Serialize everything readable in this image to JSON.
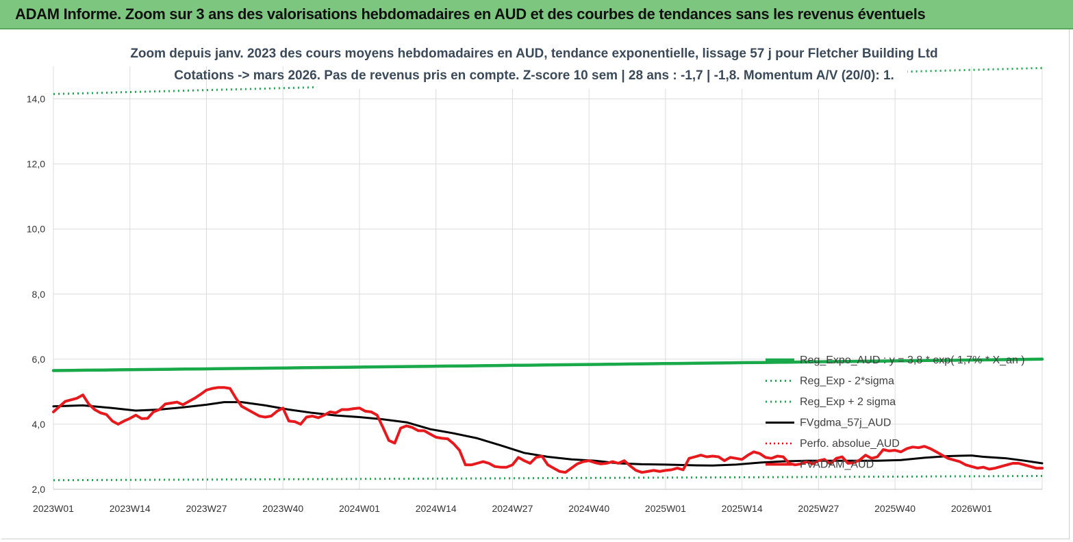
{
  "header": {
    "title": "ADAM Informe. Zoom sur 3 ans des valorisations hebdomadaires en AUD et des courbes de tendances sans les revenus éventuels"
  },
  "chart_data": {
    "type": "line",
    "title": "Zoom depuis janv. 2023 des cours moyens hebdomadaires en AUD, tendance exponentielle, lissage 57 j pour Fletcher Building Ltd",
    "subtitle": "Cotations -> mars 2026. Pas de revenus pris en compte. Z-score 10 sem | 28 ans : -1,7 | -1,8. Momentum A/V (20/0): 1.",
    "xlabel": "",
    "ylabel": "",
    "ylim": [
      2.0,
      15.0
    ],
    "yticks": [
      "2,0",
      "4,0",
      "6,0",
      "8,0",
      "10,0",
      "12,0",
      "14,0"
    ],
    "x_tick_labels": [
      "2023W01",
      "2023W14",
      "2023W27",
      "2023W40",
      "2024W01",
      "2024W14",
      "2024W27",
      "2024W40",
      "2025W01",
      "2025W14",
      "2025W27",
      "2025W40",
      "2026W01"
    ],
    "x_range_weeks": [
      0,
      168
    ],
    "grid": "vertical and horizontal",
    "legend_position": "right, lower half",
    "colors": {
      "regexpo": "#19a84a",
      "sigma": "#19a84a",
      "fvgdma": "#000000",
      "perfo": "#e60000",
      "fvadam": "#e8191c"
    },
    "series": [
      {
        "name": "Reg_Expo_AUD : y = 3,8 * exp( 1,7% * X_an )",
        "key": "regexpo",
        "style": "thick",
        "points": [
          [
            0,
            5.65
          ],
          [
            168,
            6.0
          ]
        ]
      },
      {
        "name": "Reg_Exp - 2*sigma",
        "key": "sigma_low",
        "style": "dotted",
        "points": [
          [
            0,
            2.28
          ],
          [
            168,
            2.41
          ]
        ]
      },
      {
        "name": "Reg_Exp + 2 sigma",
        "key": "sigma_high",
        "style": "dotted",
        "points": [
          [
            0,
            14.15
          ],
          [
            168,
            14.95
          ]
        ]
      },
      {
        "name": "FVgdma_57j_AUD",
        "key": "fvgdma",
        "style": "solid",
        "points": [
          [
            0,
            4.55
          ],
          [
            5,
            4.58
          ],
          [
            10,
            4.5
          ],
          [
            14,
            4.42
          ],
          [
            18,
            4.45
          ],
          [
            22,
            4.52
          ],
          [
            26,
            4.6
          ],
          [
            29,
            4.68
          ],
          [
            32,
            4.68
          ],
          [
            36,
            4.58
          ],
          [
            40,
            4.45
          ],
          [
            44,
            4.35
          ],
          [
            48,
            4.27
          ],
          [
            52,
            4.22
          ],
          [
            56,
            4.15
          ],
          [
            60,
            4.06
          ],
          [
            64,
            3.85
          ],
          [
            68,
            3.72
          ],
          [
            72,
            3.57
          ],
          [
            76,
            3.35
          ],
          [
            80,
            3.12
          ],
          [
            84,
            3.0
          ],
          [
            88,
            2.92
          ],
          [
            92,
            2.88
          ],
          [
            96,
            2.8
          ],
          [
            100,
            2.77
          ],
          [
            104,
            2.76
          ],
          [
            108,
            2.74
          ],
          [
            112,
            2.73
          ],
          [
            116,
            2.76
          ],
          [
            120,
            2.82
          ],
          [
            124,
            2.86
          ],
          [
            128,
            2.88
          ],
          [
            132,
            2.88
          ],
          [
            136,
            2.88
          ],
          [
            140,
            2.88
          ],
          [
            144,
            2.9
          ],
          [
            148,
            2.97
          ],
          [
            152,
            3.02
          ],
          [
            156,
            3.04
          ],
          [
            158,
            3.0
          ],
          [
            162,
            2.95
          ],
          [
            165,
            2.88
          ],
          [
            168,
            2.8
          ]
        ]
      },
      {
        "name": "Perfo. absolue_AUD",
        "key": "perfo",
        "style": "dotted-red",
        "points": []
      },
      {
        "name": "FVADAM_AUD",
        "key": "fvadam",
        "style": "thick",
        "points": [
          [
            0,
            4.38
          ],
          [
            2,
            4.7
          ],
          [
            4,
            4.8
          ],
          [
            5,
            4.9
          ],
          [
            6,
            4.62
          ],
          [
            7,
            4.45
          ],
          [
            8,
            4.35
          ],
          [
            9,
            4.3
          ],
          [
            10,
            4.1
          ],
          [
            11,
            4.0
          ],
          [
            12,
            4.1
          ],
          [
            13,
            4.18
          ],
          [
            14,
            4.28
          ],
          [
            15,
            4.17
          ],
          [
            16,
            4.18
          ],
          [
            17,
            4.38
          ],
          [
            18,
            4.45
          ],
          [
            19,
            4.62
          ],
          [
            20,
            4.65
          ],
          [
            21,
            4.68
          ],
          [
            22,
            4.6
          ],
          [
            23,
            4.7
          ],
          [
            24,
            4.8
          ],
          [
            25,
            4.92
          ],
          [
            26,
            5.05
          ],
          [
            27,
            5.1
          ],
          [
            28,
            5.13
          ],
          [
            29,
            5.13
          ],
          [
            30,
            5.1
          ],
          [
            31,
            4.8
          ],
          [
            32,
            4.55
          ],
          [
            33,
            4.45
          ],
          [
            34,
            4.35
          ],
          [
            35,
            4.25
          ],
          [
            36,
            4.22
          ],
          [
            37,
            4.25
          ],
          [
            38,
            4.4
          ],
          [
            39,
            4.5
          ],
          [
            40,
            4.1
          ],
          [
            41,
            4.08
          ],
          [
            42,
            4.0
          ],
          [
            43,
            4.22
          ],
          [
            44,
            4.25
          ],
          [
            45,
            4.2
          ],
          [
            46,
            4.28
          ],
          [
            47,
            4.38
          ],
          [
            48,
            4.35
          ],
          [
            49,
            4.45
          ],
          [
            50,
            4.45
          ],
          [
            51,
            4.48
          ],
          [
            52,
            4.5
          ],
          [
            53,
            4.4
          ],
          [
            54,
            4.38
          ],
          [
            55,
            4.28
          ],
          [
            56,
            3.9
          ],
          [
            57,
            3.5
          ],
          [
            58,
            3.42
          ],
          [
            59,
            3.88
          ],
          [
            60,
            3.95
          ],
          [
            61,
            3.9
          ],
          [
            62,
            3.8
          ],
          [
            63,
            3.8
          ],
          [
            64,
            3.7
          ],
          [
            65,
            3.6
          ],
          [
            66,
            3.57
          ],
          [
            67,
            3.55
          ],
          [
            68,
            3.4
          ],
          [
            69,
            3.2
          ],
          [
            70,
            2.75
          ],
          [
            71,
            2.75
          ],
          [
            72,
            2.8
          ],
          [
            73,
            2.85
          ],
          [
            74,
            2.8
          ],
          [
            75,
            2.7
          ],
          [
            76,
            2.68
          ],
          [
            77,
            2.68
          ],
          [
            78,
            2.75
          ],
          [
            79,
            2.98
          ],
          [
            80,
            2.88
          ],
          [
            81,
            2.8
          ],
          [
            82,
            2.98
          ],
          [
            83,
            3.02
          ],
          [
            84,
            2.75
          ],
          [
            85,
            2.65
          ],
          [
            86,
            2.55
          ],
          [
            87,
            2.52
          ],
          [
            88,
            2.65
          ],
          [
            89,
            2.78
          ],
          [
            90,
            2.85
          ],
          [
            91,
            2.88
          ],
          [
            92,
            2.82
          ],
          [
            93,
            2.78
          ],
          [
            94,
            2.8
          ],
          [
            95,
            2.85
          ],
          [
            96,
            2.8
          ],
          [
            97,
            2.88
          ],
          [
            98,
            2.72
          ],
          [
            99,
            2.58
          ],
          [
            100,
            2.52
          ],
          [
            101,
            2.55
          ],
          [
            102,
            2.58
          ],
          [
            103,
            2.55
          ],
          [
            104,
            2.58
          ],
          [
            105,
            2.6
          ],
          [
            106,
            2.65
          ],
          [
            107,
            2.6
          ],
          [
            108,
            2.95
          ],
          [
            109,
            3.0
          ],
          [
            110,
            3.05
          ],
          [
            111,
            3.0
          ],
          [
            112,
            3.02
          ],
          [
            113,
            3.0
          ],
          [
            114,
            2.88
          ],
          [
            115,
            2.98
          ],
          [
            116,
            2.95
          ],
          [
            117,
            2.92
          ],
          [
            118,
            3.05
          ],
          [
            119,
            3.15
          ],
          [
            120,
            3.1
          ],
          [
            121,
            2.98
          ],
          [
            122,
            2.95
          ],
          [
            123,
            3.02
          ],
          [
            124,
            3.0
          ],
          [
            125,
            2.8
          ],
          [
            126,
            2.75
          ],
          [
            127,
            2.78
          ],
          [
            128,
            2.85
          ],
          [
            129,
            2.78
          ],
          [
            130,
            2.88
          ],
          [
            131,
            2.92
          ],
          [
            132,
            2.78
          ],
          [
            133,
            2.95
          ],
          [
            134,
            3.0
          ],
          [
            135,
            2.8
          ],
          [
            136,
            2.82
          ],
          [
            137,
            2.9
          ],
          [
            138,
            3.05
          ],
          [
            139,
            2.95
          ],
          [
            140,
            3.0
          ],
          [
            141,
            3.22
          ],
          [
            142,
            3.18
          ],
          [
            143,
            3.2
          ],
          [
            144,
            3.15
          ],
          [
            145,
            3.25
          ],
          [
            146,
            3.3
          ],
          [
            147,
            3.28
          ],
          [
            148,
            3.32
          ],
          [
            149,
            3.25
          ],
          [
            150,
            3.15
          ],
          [
            151,
            3.05
          ],
          [
            152,
            2.95
          ],
          [
            153,
            2.9
          ],
          [
            154,
            2.85
          ],
          [
            155,
            2.75
          ],
          [
            156,
            2.7
          ],
          [
            157,
            2.65
          ],
          [
            158,
            2.68
          ],
          [
            159,
            2.62
          ],
          [
            160,
            2.65
          ],
          [
            161,
            2.7
          ],
          [
            162,
            2.75
          ],
          [
            163,
            2.8
          ],
          [
            164,
            2.8
          ],
          [
            165,
            2.75
          ],
          [
            166,
            2.7
          ],
          [
            167,
            2.65
          ],
          [
            168,
            2.65
          ]
        ]
      }
    ]
  }
}
